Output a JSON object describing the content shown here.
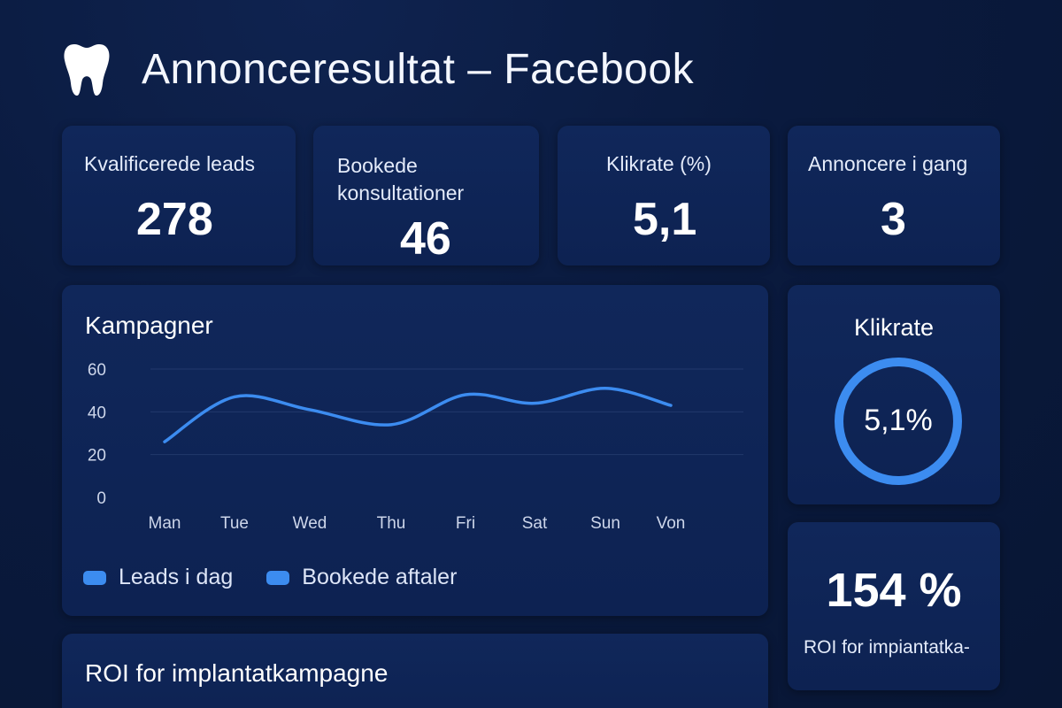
{
  "header": {
    "icon": "tooth-icon",
    "title": "Annonceresultat – Facebook"
  },
  "kpis": [
    {
      "label": "Kvalificerede leads",
      "value": "278"
    },
    {
      "label": "Bookede konsultationer",
      "value": "46"
    },
    {
      "label": "Klikrate (%)",
      "value": "5,1"
    },
    {
      "label": "Annoncere i gang",
      "value": "3"
    }
  ],
  "campaigns": {
    "title": "Kampagner",
    "legend": [
      "Leads i dag",
      "Bookede aftaler"
    ],
    "chart_data": {
      "type": "line",
      "categories": [
        "Man",
        "Tue",
        "Wed",
        "Thu",
        "Fri",
        "Sat",
        "Sun",
        "Von"
      ],
      "y_ticks": [
        "60",
        "40",
        "20",
        "0"
      ],
      "ylim": [
        0,
        60
      ],
      "series": [
        {
          "name": "Leads i dag",
          "values": [
            26,
            47,
            41,
            34,
            48,
            44,
            51,
            43
          ]
        }
      ],
      "line_color": "#3c8cf0"
    }
  },
  "ctr_card": {
    "title": "Klikrate",
    "value_text": "5,1%",
    "ring_color": "#3c8cf0"
  },
  "roi_card": {
    "value": "154 %",
    "label": "ROI for impiantatka-"
  },
  "roi_section": {
    "title": "ROI for implantatkampagne"
  },
  "colors": {
    "accent": "#3c8cf0",
    "card_bg": "#0f2556",
    "page_bg": "#0a1a3e"
  }
}
